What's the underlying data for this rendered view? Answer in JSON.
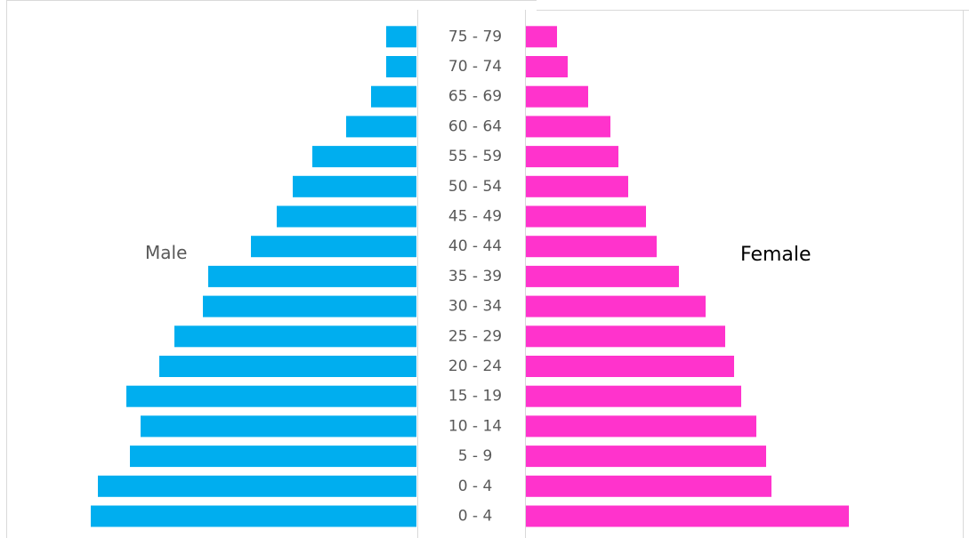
{
  "chart_data": {
    "type": "bar",
    "orientation": "horizontal-pyramid",
    "categories": [
      "0 - 4",
      "0 - 4",
      "5 - 9",
      "10 - 14",
      "15 - 19",
      "20 - 24",
      "25 - 29",
      "30 - 34",
      "35 - 39",
      "40 - 44",
      "45 - 49",
      "50 - 54",
      "55 - 59",
      "60 - 64",
      "65 - 69",
      "70 - 74",
      "75 - 79"
    ],
    "series": [
      {
        "name": "Male",
        "values": [
          366,
          358,
          322,
          310,
          326,
          289,
          272,
          240,
          234,
          186,
          157,
          139,
          117,
          79,
          51,
          34,
          34
        ]
      },
      {
        "name": "Female",
        "values": [
          363,
          276,
          270,
          259,
          242,
          234,
          224,
          202,
          172,
          147,
          135,
          115,
          104,
          95,
          70,
          47,
          35
        ]
      }
    ],
    "grid": false,
    "legend": "none",
    "colors": {
      "male": "#00AEEF",
      "female": "#FF33CC",
      "axis": "#D9D9D9",
      "tick_text": "#595959"
    }
  }
}
